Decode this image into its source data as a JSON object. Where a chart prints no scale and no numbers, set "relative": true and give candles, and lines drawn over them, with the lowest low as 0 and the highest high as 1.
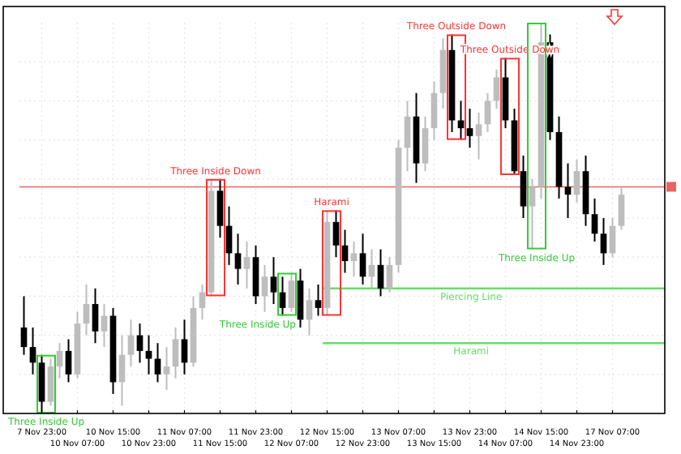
{
  "chart_data": {
    "type": "candlestick",
    "relative": true,
    "grid": true,
    "categories": [
      null,
      null,
      "7 Nov 23:00",
      null,
      null,
      null,
      "10 Nov 07:00",
      null,
      null,
      null,
      "10 Nov 15:00",
      null,
      null,
      null,
      "10 Nov 23:00",
      null,
      null,
      null,
      "11 Nov 07:00",
      null,
      null,
      null,
      "11 Nov 15:00",
      null,
      null,
      null,
      "11 Nov 23:00",
      null,
      null,
      null,
      "12 Nov 07:00",
      null,
      null,
      null,
      "12 Nov 15:00",
      null,
      null,
      null,
      "12 Nov 23:00",
      null,
      null,
      null,
      "13 Nov 07:00",
      null,
      null,
      null,
      "13 Nov 15:00",
      null,
      null,
      null,
      "13 Nov 23:00",
      null,
      null,
      null,
      "14 Nov 07:00",
      null,
      null,
      null,
      "14 Nov 15:00",
      null,
      null,
      null,
      "14 Nov 23:00",
      null,
      null,
      null,
      "17 Nov 07:00",
      null
    ],
    "ohlc": [
      [
        0.22,
        0.3,
        0.15,
        0.17
      ],
      [
        0.17,
        0.22,
        0.1,
        0.13
      ],
      [
        0.13,
        0.15,
        0.0,
        0.03
      ],
      [
        0.03,
        0.14,
        0.02,
        0.12
      ],
      [
        0.12,
        0.18,
        0.09,
        0.16
      ],
      [
        0.16,
        0.19,
        0.08,
        0.1
      ],
      [
        0.1,
        0.26,
        0.09,
        0.23
      ],
      [
        0.23,
        0.33,
        0.2,
        0.28
      ],
      [
        0.28,
        0.32,
        0.18,
        0.21
      ],
      [
        0.21,
        0.28,
        0.17,
        0.25
      ],
      [
        0.25,
        0.27,
        0.05,
        0.08
      ],
      [
        0.08,
        0.2,
        0.02,
        0.15
      ],
      [
        0.15,
        0.24,
        0.12,
        0.2
      ],
      [
        0.2,
        0.23,
        0.13,
        0.16
      ],
      [
        0.16,
        0.2,
        0.1,
        0.14
      ],
      [
        0.14,
        0.18,
        0.08,
        0.1
      ],
      [
        0.1,
        0.17,
        0.06,
        0.12
      ],
      [
        0.12,
        0.22,
        0.09,
        0.19
      ],
      [
        0.19,
        0.24,
        0.1,
        0.13
      ],
      [
        0.13,
        0.3,
        0.12,
        0.27
      ],
      [
        0.27,
        0.33,
        0.24,
        0.31
      ],
      [
        0.31,
        0.6,
        0.3,
        0.57
      ],
      [
        0.57,
        0.6,
        0.45,
        0.48
      ],
      [
        0.48,
        0.53,
        0.38,
        0.41
      ],
      [
        0.41,
        0.46,
        0.33,
        0.37
      ],
      [
        0.37,
        0.44,
        0.32,
        0.4
      ],
      [
        0.4,
        0.43,
        0.28,
        0.3
      ],
      [
        0.3,
        0.38,
        0.26,
        0.35
      ],
      [
        0.35,
        0.4,
        0.28,
        0.31
      ],
      [
        0.31,
        0.35,
        0.25,
        0.27
      ],
      [
        0.27,
        0.36,
        0.26,
        0.34
      ],
      [
        0.34,
        0.37,
        0.22,
        0.24
      ],
      [
        0.24,
        0.32,
        0.2,
        0.29
      ],
      [
        0.29,
        0.33,
        0.25,
        0.27
      ],
      [
        0.27,
        0.52,
        0.25,
        0.49
      ],
      [
        0.49,
        0.52,
        0.4,
        0.43
      ],
      [
        0.43,
        0.47,
        0.36,
        0.39
      ],
      [
        0.39,
        0.44,
        0.35,
        0.41
      ],
      [
        0.41,
        0.46,
        0.33,
        0.35
      ],
      [
        0.35,
        0.42,
        0.32,
        0.38
      ],
      [
        0.38,
        0.42,
        0.3,
        0.32
      ],
      [
        0.32,
        0.4,
        0.31,
        0.38
      ],
      [
        0.38,
        0.7,
        0.36,
        0.68
      ],
      [
        0.68,
        0.8,
        0.62,
        0.76
      ],
      [
        0.76,
        0.82,
        0.59,
        0.64
      ],
      [
        0.64,
        0.76,
        0.62,
        0.73
      ],
      [
        0.73,
        0.85,
        0.7,
        0.82
      ],
      [
        0.82,
        0.96,
        0.78,
        0.93
      ],
      [
        0.93,
        0.97,
        0.72,
        0.75
      ],
      [
        0.75,
        0.8,
        0.7,
        0.73
      ],
      [
        0.73,
        0.78,
        0.68,
        0.71
      ],
      [
        0.71,
        0.77,
        0.65,
        0.74
      ],
      [
        0.74,
        0.82,
        0.72,
        0.8
      ],
      [
        0.8,
        0.88,
        0.78,
        0.86
      ],
      [
        0.86,
        0.91,
        0.73,
        0.75
      ],
      [
        0.75,
        0.78,
        0.61,
        0.62
      ],
      [
        0.62,
        0.66,
        0.5,
        0.53
      ],
      [
        0.53,
        0.6,
        0.42,
        0.58
      ],
      [
        0.58,
        1.0,
        0.55,
        0.95
      ],
      [
        0.95,
        0.97,
        0.7,
        0.72
      ],
      [
        0.72,
        0.76,
        0.55,
        0.58
      ],
      [
        0.58,
        0.64,
        0.5,
        0.56
      ],
      [
        0.56,
        0.65,
        0.54,
        0.62
      ],
      [
        0.62,
        0.66,
        0.48,
        0.51
      ],
      [
        0.51,
        0.55,
        0.44,
        0.46
      ],
      [
        0.46,
        0.5,
        0.38,
        0.41
      ],
      [
        0.41,
        0.5,
        0.4,
        0.48
      ],
      [
        0.48,
        0.58,
        0.47,
        0.56
      ]
    ],
    "ref_lines": [
      {
        "axis": "y",
        "value": 0.58,
        "color": "#e86464"
      },
      {
        "axis": "y",
        "value": 0.32,
        "label": "Piercing Line",
        "color": "#66dd66"
      },
      {
        "axis": "y",
        "value": 0.18,
        "label": "Harami",
        "color": "#66dd66"
      }
    ],
    "annotations": [
      "Three Inside Up",
      "Three Inside Down",
      "Three Inside Up",
      "Harami",
      "Three Outside Down",
      "Three Outside Down",
      "Three Inside Up"
    ]
  }
}
